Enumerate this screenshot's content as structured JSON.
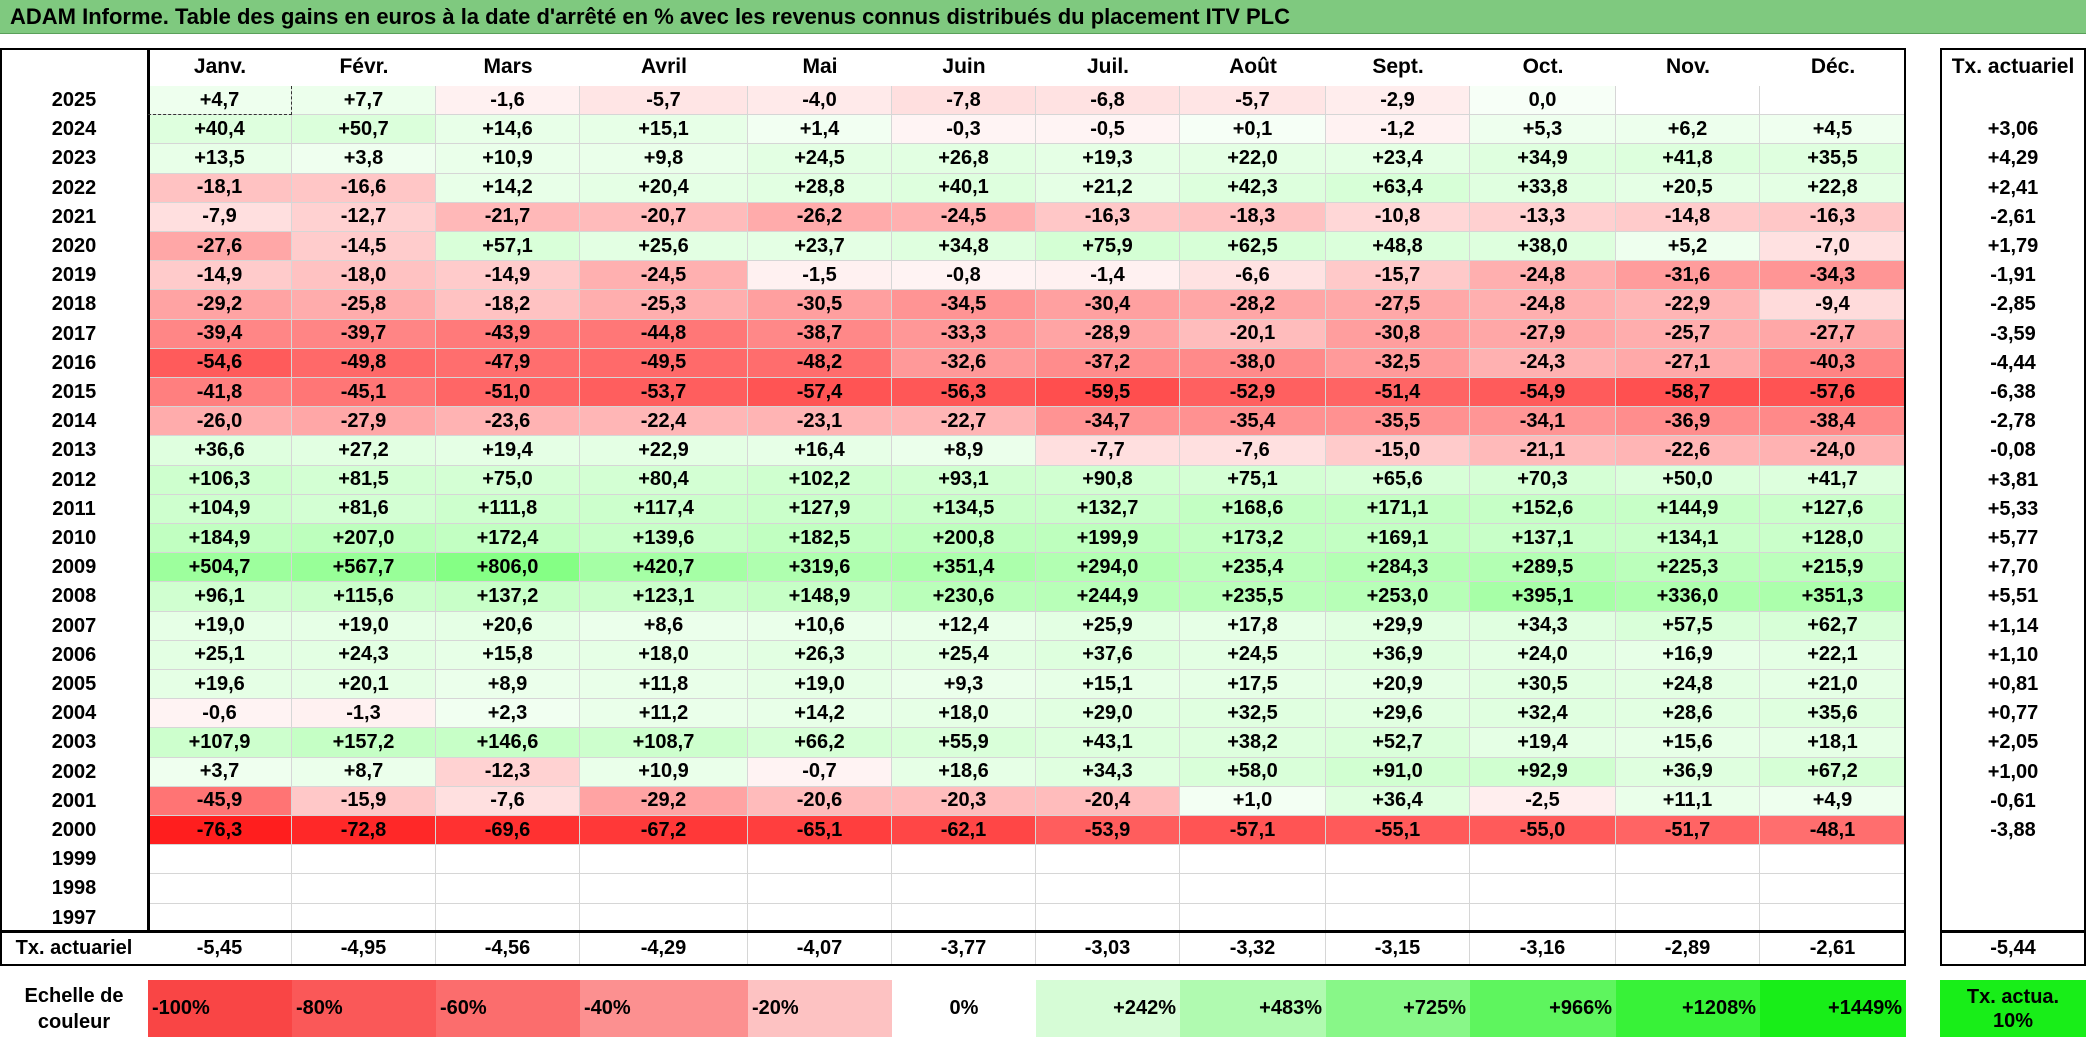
{
  "title": "ADAM Informe. Table des gains en euros à la date d'arrêté en % avec les revenus connus distribués du placement ITV PLC",
  "months": [
    "Janv.",
    "Févr.",
    "Mars",
    "Avril",
    "Mai",
    "Juin",
    "Juil.",
    "Août",
    "Sept.",
    "Oct.",
    "Nov.",
    "Déc."
  ],
  "rate_header": "Tx. actuariel",
  "rows": [
    {
      "year": "2025",
      "values": [
        "+4,7",
        "+7,7",
        "-1,6",
        "-5,7",
        "-4,0",
        "-7,8",
        "-6,8",
        "-5,7",
        "-2,9",
        "0,0",
        "",
        ""
      ],
      "rate": ""
    },
    {
      "year": "2024",
      "values": [
        "+40,4",
        "+50,7",
        "+14,6",
        "+15,1",
        "+1,4",
        "-0,3",
        "-0,5",
        "+0,1",
        "-1,2",
        "+5,3",
        "+6,2",
        "+4,5"
      ],
      "rate": "+3,06"
    },
    {
      "year": "2023",
      "values": [
        "+13,5",
        "+3,8",
        "+10,9",
        "+9,8",
        "+24,5",
        "+26,8",
        "+19,3",
        "+22,0",
        "+23,4",
        "+34,9",
        "+41,8",
        "+35,5"
      ],
      "rate": "+4,29"
    },
    {
      "year": "2022",
      "values": [
        "-18,1",
        "-16,6",
        "+14,2",
        "+20,4",
        "+28,8",
        "+40,1",
        "+21,2",
        "+42,3",
        "+63,4",
        "+33,8",
        "+20,5",
        "+22,8"
      ],
      "rate": "+2,41"
    },
    {
      "year": "2021",
      "values": [
        "-7,9",
        "-12,7",
        "-21,7",
        "-20,7",
        "-26,2",
        "-24,5",
        "-16,3",
        "-18,3",
        "-10,8",
        "-13,3",
        "-14,8",
        "-16,3"
      ],
      "rate": "-2,61"
    },
    {
      "year": "2020",
      "values": [
        "-27,6",
        "-14,5",
        "+57,1",
        "+25,6",
        "+23,7",
        "+34,8",
        "+75,9",
        "+62,5",
        "+48,8",
        "+38,0",
        "+5,2",
        "-7,0"
      ],
      "rate": "+1,79"
    },
    {
      "year": "2019",
      "values": [
        "-14,9",
        "-18,0",
        "-14,9",
        "-24,5",
        "-1,5",
        "-0,8",
        "-1,4",
        "-6,6",
        "-15,7",
        "-24,8",
        "-31,6",
        "-34,3"
      ],
      "rate": "-1,91"
    },
    {
      "year": "2018",
      "values": [
        "-29,2",
        "-25,8",
        "-18,2",
        "-25,3",
        "-30,5",
        "-34,5",
        "-30,4",
        "-28,2",
        "-27,5",
        "-24,8",
        "-22,9",
        "-9,4"
      ],
      "rate": "-2,85"
    },
    {
      "year": "2017",
      "values": [
        "-39,4",
        "-39,7",
        "-43,9",
        "-44,8",
        "-38,7",
        "-33,3",
        "-28,9",
        "-20,1",
        "-30,8",
        "-27,9",
        "-25,7",
        "-27,7"
      ],
      "rate": "-3,59"
    },
    {
      "year": "2016",
      "values": [
        "-54,6",
        "-49,8",
        "-47,9",
        "-49,5",
        "-48,2",
        "-32,6",
        "-37,2",
        "-38,0",
        "-32,5",
        "-24,3",
        "-27,1",
        "-40,3"
      ],
      "rate": "-4,44"
    },
    {
      "year": "2015",
      "values": [
        "-41,8",
        "-45,1",
        "-51,0",
        "-53,7",
        "-57,4",
        "-56,3",
        "-59,5",
        "-52,9",
        "-51,4",
        "-54,9",
        "-58,7",
        "-57,6"
      ],
      "rate": "-6,38"
    },
    {
      "year": "2014",
      "values": [
        "-26,0",
        "-27,9",
        "-23,6",
        "-22,4",
        "-23,1",
        "-22,7",
        "-34,7",
        "-35,4",
        "-35,5",
        "-34,1",
        "-36,9",
        "-38,4"
      ],
      "rate": "-2,78"
    },
    {
      "year": "2013",
      "values": [
        "+36,6",
        "+27,2",
        "+19,4",
        "+22,9",
        "+16,4",
        "+8,9",
        "-7,7",
        "-7,6",
        "-15,0",
        "-21,1",
        "-22,6",
        "-24,0"
      ],
      "rate": "-0,08"
    },
    {
      "year": "2012",
      "values": [
        "+106,3",
        "+81,5",
        "+75,0",
        "+80,4",
        "+102,2",
        "+93,1",
        "+90,8",
        "+75,1",
        "+65,6",
        "+70,3",
        "+50,0",
        "+41,7"
      ],
      "rate": "+3,81"
    },
    {
      "year": "2011",
      "values": [
        "+104,9",
        "+81,6",
        "+111,8",
        "+117,4",
        "+127,9",
        "+134,5",
        "+132,7",
        "+168,6",
        "+171,1",
        "+152,6",
        "+144,9",
        "+127,6"
      ],
      "rate": "+5,33"
    },
    {
      "year": "2010",
      "values": [
        "+184,9",
        "+207,0",
        "+172,4",
        "+139,6",
        "+182,5",
        "+200,8",
        "+199,9",
        "+173,2",
        "+169,1",
        "+137,1",
        "+134,1",
        "+128,0"
      ],
      "rate": "+5,77"
    },
    {
      "year": "2009",
      "values": [
        "+504,7",
        "+567,7",
        "+806,0",
        "+420,7",
        "+319,6",
        "+351,4",
        "+294,0",
        "+235,4",
        "+284,3",
        "+289,5",
        "+225,3",
        "+215,9"
      ],
      "rate": "+7,70"
    },
    {
      "year": "2008",
      "values": [
        "+96,1",
        "+115,6",
        "+137,2",
        "+123,1",
        "+148,9",
        "+230,6",
        "+244,9",
        "+235,5",
        "+253,0",
        "+395,1",
        "+336,0",
        "+351,3"
      ],
      "rate": "+5,51"
    },
    {
      "year": "2007",
      "values": [
        "+19,0",
        "+19,0",
        "+20,6",
        "+8,6",
        "+10,6",
        "+12,4",
        "+25,9",
        "+17,8",
        "+29,9",
        "+34,3",
        "+57,5",
        "+62,7"
      ],
      "rate": "+1,14"
    },
    {
      "year": "2006",
      "values": [
        "+25,1",
        "+24,3",
        "+15,8",
        "+18,0",
        "+26,3",
        "+25,4",
        "+37,6",
        "+24,5",
        "+36,9",
        "+24,0",
        "+16,9",
        "+22,1"
      ],
      "rate": "+1,10"
    },
    {
      "year": "2005",
      "values": [
        "+19,6",
        "+20,1",
        "+8,9",
        "+11,8",
        "+19,0",
        "+9,3",
        "+15,1",
        "+17,5",
        "+20,9",
        "+30,5",
        "+24,8",
        "+21,0"
      ],
      "rate": "+0,81"
    },
    {
      "year": "2004",
      "values": [
        "-0,6",
        "-1,3",
        "+2,3",
        "+11,2",
        "+14,2",
        "+18,0",
        "+29,0",
        "+32,5",
        "+29,6",
        "+32,4",
        "+28,6",
        "+35,6"
      ],
      "rate": "+0,77"
    },
    {
      "year": "2003",
      "values": [
        "+107,9",
        "+157,2",
        "+146,6",
        "+108,7",
        "+66,2",
        "+55,9",
        "+43,1",
        "+38,2",
        "+52,7",
        "+19,4",
        "+15,6",
        "+18,1"
      ],
      "rate": "+2,05"
    },
    {
      "year": "2002",
      "values": [
        "+3,7",
        "+8,7",
        "-12,3",
        "+10,9",
        "-0,7",
        "+18,6",
        "+34,3",
        "+58,0",
        "+91,0",
        "+92,9",
        "+36,9",
        "+67,2"
      ],
      "rate": "+1,00"
    },
    {
      "year": "2001",
      "values": [
        "-45,9",
        "-15,9",
        "-7,6",
        "-29,2",
        "-20,6",
        "-20,3",
        "-20,4",
        "+1,0",
        "+36,4",
        "-2,5",
        "+11,1",
        "+4,9"
      ],
      "rate": "-0,61"
    },
    {
      "year": "2000",
      "values": [
        "-76,3",
        "-72,8",
        "-69,6",
        "-67,2",
        "-65,1",
        "-62,1",
        "-53,9",
        "-57,1",
        "-55,1",
        "-55,0",
        "-51,7",
        "-48,1"
      ],
      "rate": "-3,88"
    },
    {
      "year": "1999",
      "values": [
        "",
        "",
        "",
        "",
        "",
        "",
        "",
        "",
        "",
        "",
        "",
        ""
      ],
      "rate": ""
    },
    {
      "year": "1998",
      "values": [
        "",
        "",
        "",
        "",
        "",
        "",
        "",
        "",
        "",
        "",
        "",
        ""
      ],
      "rate": ""
    },
    {
      "year": "1997",
      "values": [
        "",
        "",
        "",
        "",
        "",
        "",
        "",
        "",
        "",
        "",
        "",
        ""
      ],
      "rate": ""
    }
  ],
  "footer_label": "Tx. actuariel",
  "footer_values": [
    "-5,45",
    "-4,95",
    "-4,56",
    "-4,29",
    "-4,07",
    "-3,77",
    "-3,03",
    "-3,32",
    "-3,15",
    "-3,16",
    "-2,89",
    "-2,61"
  ],
  "footer_rate": "-5,44",
  "scale_label": "Echelle de couleur",
  "scale": [
    {
      "label": "-100%",
      "color": "#f94545",
      "align": "left"
    },
    {
      "label": "-80%",
      "color": "#fa5858",
      "align": "left"
    },
    {
      "label": "-60%",
      "color": "#fb6d6d",
      "align": "left"
    },
    {
      "label": "-40%",
      "color": "#fc9090",
      "align": "left"
    },
    {
      "label": "-20%",
      "color": "#fdc2c2",
      "align": "left"
    },
    {
      "label": "0%",
      "color": "#ffffff",
      "align": "center"
    },
    {
      "label": "+242%",
      "color": "#d6fcd6",
      "align": "right"
    },
    {
      "label": "+483%",
      "color": "#b0fab0",
      "align": "right"
    },
    {
      "label": "+725%",
      "color": "#88f788",
      "align": "right"
    },
    {
      "label": "+966%",
      "color": "#5ef55e",
      "align": "right"
    },
    {
      "label": "+1208%",
      "color": "#38f238",
      "align": "right"
    },
    {
      "label": "+1449%",
      "color": "#18ee18",
      "align": "right"
    }
  ],
  "scale_rate_label": "Tx. actua. 10%",
  "scale_rate_color": "#18ee18"
}
